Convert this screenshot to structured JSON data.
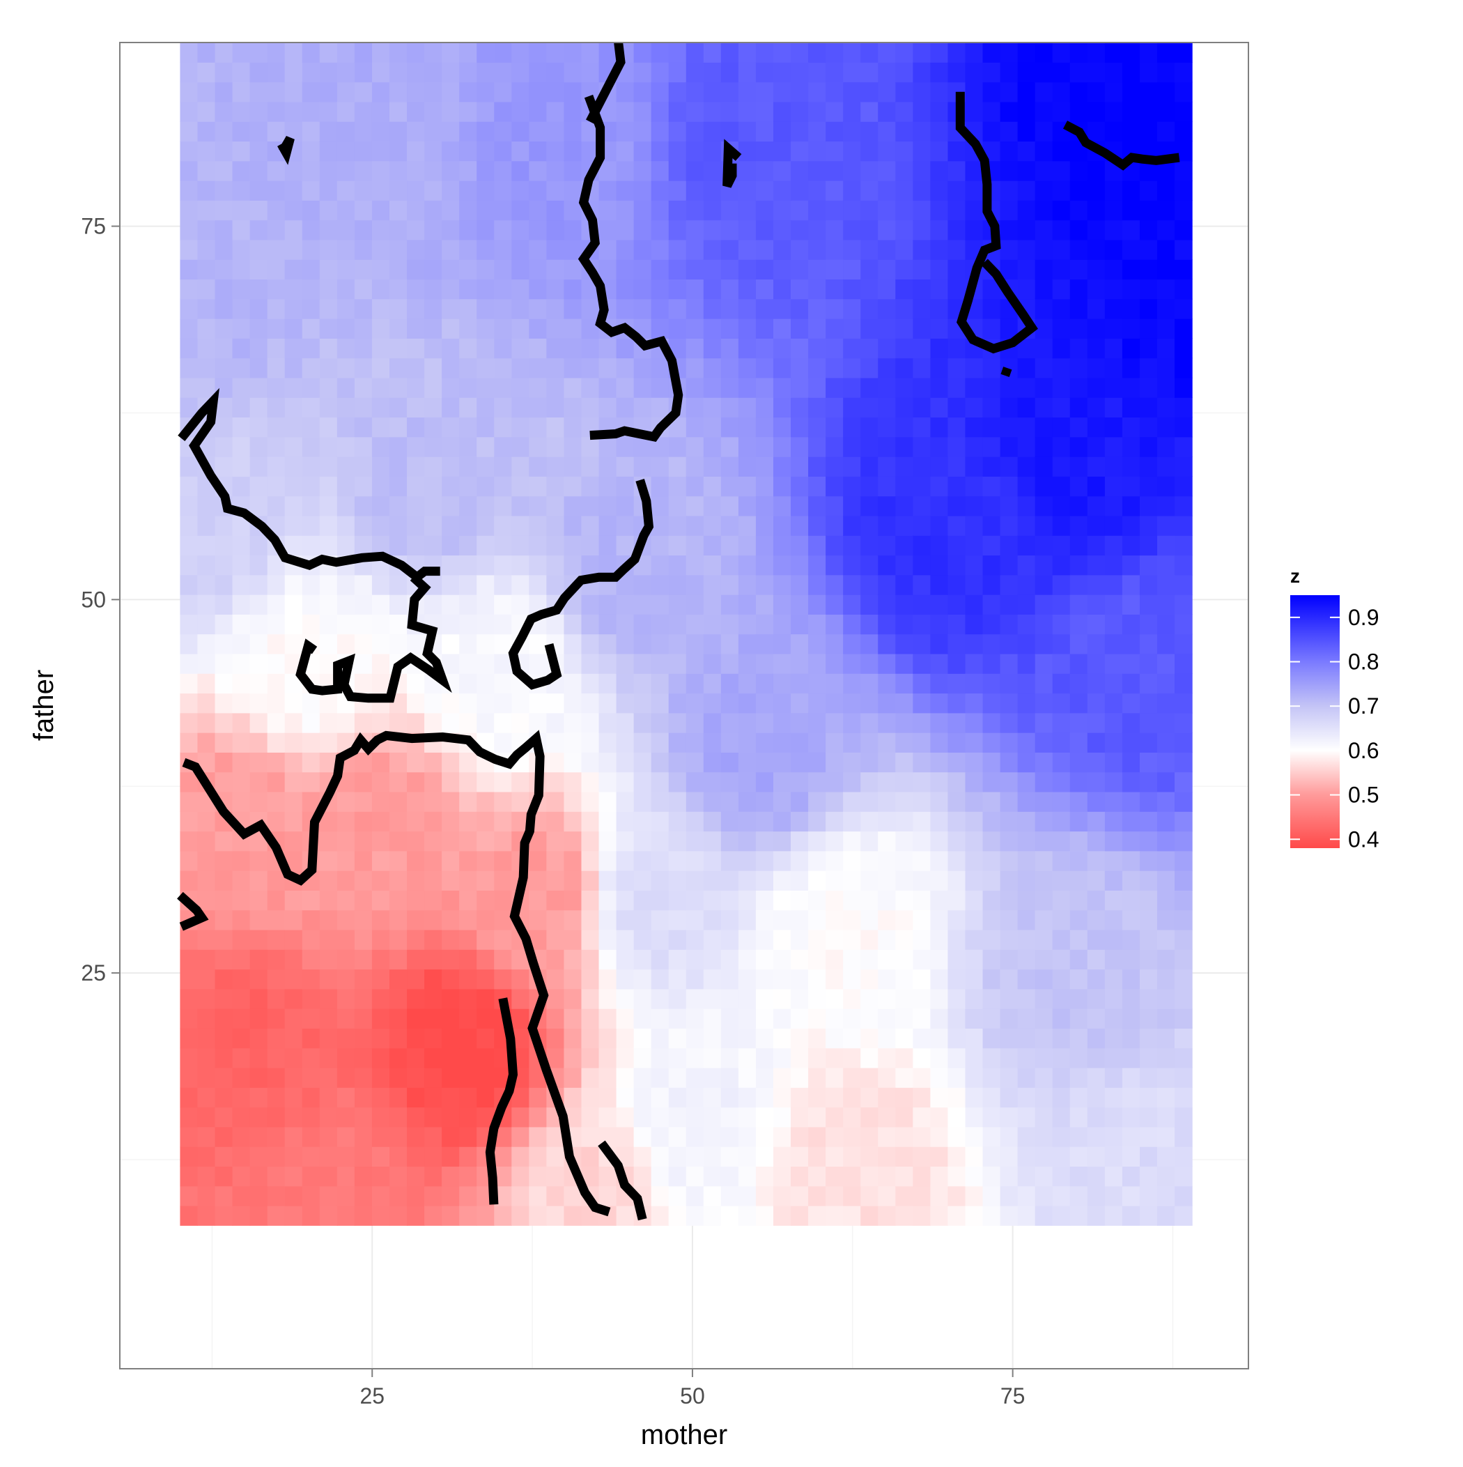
{
  "chart_data": {
    "type": "heatmap",
    "title": "",
    "xlabel": "mother",
    "ylabel": "father",
    "xlim": [
      5.3,
      93.4
    ],
    "ylim": [
      -1.5,
      87.3
    ],
    "xticks": [
      25,
      50,
      75
    ],
    "yticks": [
      25,
      50,
      75
    ],
    "grid": true,
    "panel_background": "#ffffff",
    "grid_color": "#ebebeb",
    "tile_extent": {
      "x": [
        10,
        89
      ],
      "y": [
        8.1,
        87.3
      ]
    },
    "legend": {
      "title": "z",
      "position": "right",
      "ticks": [
        0.4,
        0.5,
        0.6,
        0.7,
        0.8,
        0.9
      ],
      "tick_labels": [
        "0.4",
        "0.5",
        "0.6",
        "0.7",
        "0.8",
        "0.9"
      ],
      "range": [
        0.38,
        0.95
      ]
    },
    "colorscale": [
      {
        "value": 0.38,
        "color": "#ff4a4a"
      },
      {
        "value": 0.5,
        "color": "#ff9a9a"
      },
      {
        "value": 0.6,
        "color": "#ffffff"
      },
      {
        "value": 0.7,
        "color": "#c4c4f6"
      },
      {
        "value": 0.8,
        "color": "#7a7aff"
      },
      {
        "value": 0.95,
        "color": "#0000ff"
      }
    ],
    "surface_anchors": [
      {
        "x": 12,
        "y": 70,
        "z": 0.72
      },
      {
        "x": 25,
        "y": 80,
        "z": 0.73
      },
      {
        "x": 40,
        "y": 80,
        "z": 0.76
      },
      {
        "x": 55,
        "y": 80,
        "z": 0.84
      },
      {
        "x": 85,
        "y": 83,
        "z": 0.95
      },
      {
        "x": 80,
        "y": 60,
        "z": 0.92
      },
      {
        "x": 70,
        "y": 55,
        "z": 0.89
      },
      {
        "x": 85,
        "y": 45,
        "z": 0.84
      },
      {
        "x": 55,
        "y": 40,
        "z": 0.74
      },
      {
        "x": 80,
        "y": 25,
        "z": 0.7
      },
      {
        "x": 85,
        "y": 12,
        "z": 0.66
      },
      {
        "x": 62,
        "y": 28,
        "z": 0.6
      },
      {
        "x": 63,
        "y": 12,
        "z": 0.57
      },
      {
        "x": 50,
        "y": 15,
        "z": 0.62
      },
      {
        "x": 47,
        "y": 30,
        "z": 0.66
      },
      {
        "x": 38,
        "y": 30,
        "z": 0.5
      },
      {
        "x": 32,
        "y": 20,
        "z": 0.38
      },
      {
        "x": 15,
        "y": 20,
        "z": 0.42
      },
      {
        "x": 15,
        "y": 35,
        "z": 0.5
      },
      {
        "x": 25,
        "y": 35,
        "z": 0.5
      },
      {
        "x": 20,
        "y": 45,
        "z": 0.6
      },
      {
        "x": 35,
        "y": 45,
        "z": 0.61
      },
      {
        "x": 12,
        "y": 55,
        "z": 0.68
      },
      {
        "x": 30,
        "y": 58,
        "z": 0.71
      },
      {
        "x": 45,
        "y": 52,
        "z": 0.72
      },
      {
        "x": 22,
        "y": 10,
        "z": 0.45
      },
      {
        "x": 42,
        "y": 10,
        "z": 0.56
      },
      {
        "x": 88,
        "y": 70,
        "z": 0.94
      }
    ],
    "contour_lines": [
      [
        [
          41.9,
          83.7
        ],
        [
          42.8,
          81.6
        ],
        [
          42.8,
          79.6
        ],
        [
          41.9,
          78.1
        ],
        [
          41.5,
          76.6
        ],
        [
          42.2,
          75.4
        ],
        [
          42.4,
          73.9
        ],
        [
          41.5,
          72.8
        ],
        [
          42.2,
          71.9
        ],
        [
          42.8,
          71.0
        ],
        [
          43.1,
          69.4
        ],
        [
          42.8,
          68.5
        ],
        [
          43.7,
          67.9
        ],
        [
          44.7,
          68.2
        ],
        [
          45.6,
          67.6
        ],
        [
          46.3,
          67.0
        ],
        [
          47.6,
          67.3
        ],
        [
          48.4,
          66.0
        ],
        [
          48.9,
          63.7
        ],
        [
          48.7,
          62.5
        ],
        [
          47.5,
          61.5
        ],
        [
          47.0,
          60.9
        ],
        [
          44.7,
          61.3
        ],
        [
          44.0,
          61.1
        ],
        [
          42.0,
          61.0
        ]
      ],
      [
        [
          48.9,
          88.0
        ],
        [
          43.7,
          91.0
        ],
        [
          44.4,
          86.0
        ],
        [
          42.0,
          82.0
        ]
      ],
      [
        [
          70.9,
          84.0
        ],
        [
          70.9,
          81.6
        ],
        [
          72.1,
          80.5
        ],
        [
          72.8,
          79.4
        ],
        [
          73.0,
          77.8
        ],
        [
          73.0,
          76.0
        ],
        [
          73.6,
          75.0
        ],
        [
          73.7,
          73.7
        ],
        [
          72.8,
          73.4
        ],
        [
          72.2,
          72.2
        ],
        [
          71.5,
          70.0
        ],
        [
          71.0,
          68.6
        ],
        [
          71.9,
          67.4
        ],
        [
          73.5,
          66.8
        ],
        [
          75.0,
          67.2
        ],
        [
          76.5,
          68.2
        ],
        [
          75.8,
          69.1
        ],
        [
          74.6,
          70.6
        ],
        [
          73.7,
          71.8
        ],
        [
          72.8,
          72.6
        ]
      ],
      [
        [
          79.1,
          81.8
        ],
        [
          80.2,
          81.3
        ],
        [
          80.7,
          80.6
        ],
        [
          82.2,
          79.9
        ],
        [
          83.6,
          79.1
        ],
        [
          84.3,
          79.6
        ],
        [
          85.1,
          79.5
        ],
        [
          86.2,
          79.4
        ],
        [
          88.0,
          79.6
        ]
      ],
      [
        [
          10.1,
          60.8
        ],
        [
          11.7,
          62.5
        ],
        [
          12.6,
          63.3
        ],
        [
          12.4,
          61.9
        ],
        [
          11.1,
          60.3
        ],
        [
          12.4,
          58.3
        ],
        [
          13.5,
          56.9
        ],
        [
          13.7,
          56.1
        ],
        [
          15.0,
          55.8
        ],
        [
          16.4,
          54.9
        ],
        [
          17.4,
          54.0
        ],
        [
          18.2,
          52.8
        ],
        [
          20.1,
          52.3
        ],
        [
          21.1,
          52.7
        ],
        [
          22.2,
          52.5
        ],
        [
          24.2,
          52.8
        ],
        [
          25.8,
          52.9
        ],
        [
          27.3,
          52.3
        ],
        [
          28.5,
          51.5
        ],
        [
          29.1,
          51.9
        ],
        [
          30.3,
          51.9
        ]
      ],
      [
        [
          10.1,
          28.1
        ],
        [
          11.7,
          28.7
        ],
        [
          11.3,
          29.2
        ],
        [
          10.0,
          30.2
        ]
      ],
      [
        [
          10.3,
          39.1
        ],
        [
          11.2,
          38.8
        ],
        [
          13.4,
          35.8
        ],
        [
          15.0,
          34.3
        ],
        [
          16.3,
          34.9
        ],
        [
          17.5,
          33.4
        ],
        [
          18.4,
          31.6
        ],
        [
          19.4,
          31.2
        ],
        [
          20.3,
          31.9
        ],
        [
          20.5,
          35.1
        ],
        [
          21.7,
          37.1
        ],
        [
          22.3,
          38.2
        ],
        [
          22.5,
          39.4
        ],
        [
          23.6,
          39.9
        ],
        [
          24.1,
          40.6
        ],
        [
          24.7,
          40.0
        ],
        [
          25.4,
          40.6
        ],
        [
          26.1,
          40.9
        ],
        [
          28.1,
          40.7
        ],
        [
          30.5,
          40.8
        ],
        [
          32.5,
          40.6
        ],
        [
          33.4,
          39.8
        ],
        [
          34.6,
          39.3
        ],
        [
          35.7,
          39.0
        ],
        [
          36.3,
          39.6
        ],
        [
          37.0,
          40.1
        ],
        [
          37.8,
          40.7
        ],
        [
          38.1,
          39.5
        ],
        [
          38.0,
          36.9
        ],
        [
          37.4,
          35.6
        ],
        [
          37.3,
          34.5
        ],
        [
          36.9,
          33.7
        ],
        [
          36.8,
          31.4
        ],
        [
          36.1,
          28.8
        ],
        [
          37.0,
          27.3
        ],
        [
          37.6,
          25.6
        ],
        [
          38.4,
          23.5
        ],
        [
          37.5,
          21.3
        ],
        [
          38.6,
          18.5
        ],
        [
          39.9,
          15.4
        ],
        [
          40.4,
          12.7
        ],
        [
          41.6,
          10.3
        ],
        [
          42.4,
          9.3
        ],
        [
          43.5,
          9.0
        ]
      ],
      [
        [
          17.9,
          80.5
        ],
        [
          18.3,
          79.9
        ],
        [
          18.6,
          80.9
        ],
        [
          18.0,
          80.0
        ]
      ],
      [
        [
          53.1,
          79.2
        ],
        [
          53.1,
          78.4
        ],
        [
          52.7,
          77.7
        ],
        [
          52.8,
          80.2
        ],
        [
          53.6,
          79.6
        ]
      ],
      [
        [
          74.6,
          65.5
        ],
        [
          74.4,
          65.0
        ]
      ],
      [
        [
          20.5,
          46.6
        ],
        [
          20.0,
          46.9
        ],
        [
          19.4,
          45.0
        ],
        [
          20.3,
          44.0
        ],
        [
          21.1,
          43.9
        ],
        [
          22.3,
          44.0
        ],
        [
          22.3,
          45.6
        ],
        [
          23.2,
          45.9
        ],
        [
          22.8,
          44.3
        ],
        [
          23.3,
          43.5
        ],
        [
          24.7,
          43.4
        ],
        [
          26.4,
          43.4
        ],
        [
          27.0,
          45.5
        ],
        [
          28.0,
          46.1
        ],
        [
          29.4,
          45.3
        ],
        [
          30.5,
          44.6
        ],
        [
          30.0,
          45.8
        ],
        [
          29.3,
          46.4
        ],
        [
          29.7,
          47.9
        ],
        [
          28.1,
          48.3
        ],
        [
          28.3,
          50.0
        ],
        [
          29.1,
          50.8
        ],
        [
          28.2,
          51.5
        ]
      ],
      [
        [
          45.9,
          58.0
        ],
        [
          46.4,
          56.6
        ],
        [
          46.6,
          54.9
        ],
        [
          46.2,
          54.3
        ],
        [
          45.5,
          52.7
        ],
        [
          44.6,
          52.0
        ],
        [
          44.0,
          51.5
        ],
        [
          42.7,
          51.5
        ],
        [
          41.3,
          51.3
        ],
        [
          40.0,
          50.1
        ],
        [
          39.4,
          49.3
        ],
        [
          38.2,
          49.0
        ],
        [
          37.4,
          48.7
        ],
        [
          36.7,
          47.5
        ],
        [
          36.0,
          46.4
        ],
        [
          36.3,
          45.2
        ],
        [
          37.5,
          44.3
        ],
        [
          38.7,
          44.6
        ],
        [
          39.4,
          45.0
        ],
        [
          38.8,
          47.0
        ]
      ],
      [
        [
          35.2,
          23.3
        ],
        [
          35.8,
          20.6
        ],
        [
          36.0,
          18.2
        ],
        [
          35.7,
          17.1
        ],
        [
          35.1,
          16.0
        ],
        [
          34.5,
          14.6
        ],
        [
          34.2,
          13.0
        ],
        [
          34.4,
          11.3
        ],
        [
          34.5,
          9.5
        ]
      ],
      [
        [
          42.9,
          13.6
        ],
        [
          44.2,
          12.1
        ],
        [
          44.7,
          10.8
        ],
        [
          45.7,
          9.9
        ],
        [
          46.1,
          8.5
        ]
      ]
    ]
  }
}
